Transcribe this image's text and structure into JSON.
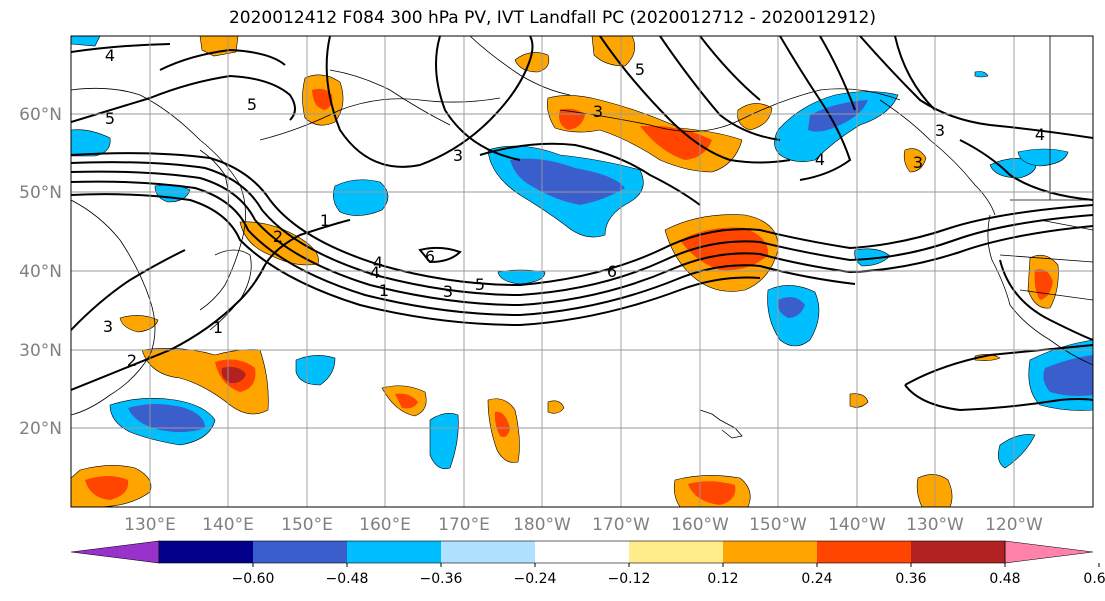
{
  "title": "2020012412 F084 300 hPa PV, IVT Landfall PC (2020012712 - 2020012912)",
  "lat_labels": [
    "60°N",
    "50°N",
    "40°N",
    "30°N",
    "20°N"
  ],
  "lon_labels": [
    "130°E",
    "140°E",
    "150°E",
    "160°E",
    "170°E",
    "180°W",
    "170°W",
    "160°W",
    "150°W",
    "140°W",
    "130°W",
    "120°W"
  ],
  "colorbar": {
    "colors": [
      "#9932cc",
      "#00008b",
      "#3a5fcd",
      "#00bfff",
      "#b0e2ff",
      "#ffffff",
      "#ffec8b",
      "#ffa500",
      "#ff4500",
      "#b22222",
      "#ff82ab"
    ],
    "tick_labels": [
      "−0.60",
      "−0.48",
      "−0.36",
      "−0.24",
      "−0.12",
      "0.12",
      "0.24",
      "0.36",
      "0.48",
      "0.60"
    ]
  },
  "contour_labels": [
    "4",
    "5",
    "5",
    "3",
    "3",
    "4",
    "5",
    "6",
    "6",
    "1",
    "2",
    "1",
    "3",
    "4",
    "5",
    "3",
    "2",
    "1",
    "4",
    "3",
    "3",
    "4"
  ]
}
